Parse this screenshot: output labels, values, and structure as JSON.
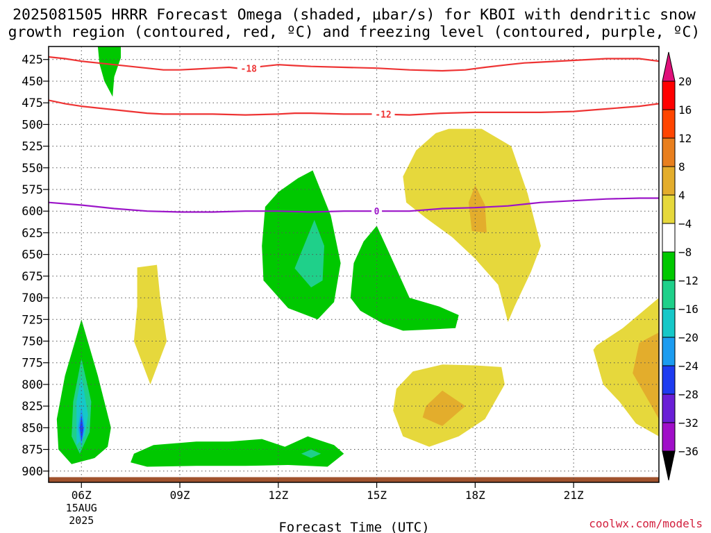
{
  "chart_data": {
    "type": "heatmap",
    "title_line1": "2025081505 HRRR Forecast Omega (shaded, μbar/s) for KBOI with dendritic snow",
    "title_line2": "growth region (contoured, red, ºC) and freezing level (contoured, purple, ºC)",
    "xlabel": "Forecast Time (UTC)",
    "ylabel": "",
    "credit": "coolwx.com/models",
    "x_range_hours": [
      5,
      23.6
    ],
    "y_range_hPa": [
      410,
      913
    ],
    "x_ticks": [
      {
        "hour": 6,
        "label": "06Z",
        "sub1": "15AUG",
        "sub2": "2025"
      },
      {
        "hour": 9,
        "label": "09Z",
        "sub1": "",
        "sub2": ""
      },
      {
        "hour": 12,
        "label": "12Z",
        "sub1": "",
        "sub2": ""
      },
      {
        "hour": 15,
        "label": "15Z",
        "sub1": "",
        "sub2": ""
      },
      {
        "hour": 18,
        "label": "18Z",
        "sub1": "",
        "sub2": ""
      },
      {
        "hour": 21,
        "label": "21Z",
        "sub1": "",
        "sub2": ""
      }
    ],
    "y_ticks": [
      425,
      450,
      475,
      500,
      525,
      550,
      575,
      600,
      625,
      650,
      675,
      700,
      725,
      750,
      775,
      800,
      825,
      850,
      875,
      900
    ],
    "grid": true,
    "colorbar": [
      {
        "label": "20",
        "color": "#ff0000"
      },
      {
        "label": "16",
        "color": "#ff4500"
      },
      {
        "label": "12",
        "color": "#e87f1e"
      },
      {
        "label": "8",
        "color": "#e3ad2c"
      },
      {
        "label": "4",
        "color": "#e6d83c"
      },
      {
        "label": "−4",
        "color": "#ffffff"
      },
      {
        "label": "−8",
        "color": "#00c800"
      },
      {
        "label": "−12",
        "color": "#1fd08a"
      },
      {
        "label": "−16",
        "color": "#16c8c8"
      },
      {
        "label": "−20",
        "color": "#1c9cf0"
      },
      {
        "label": "−24",
        "color": "#1e3cf0"
      },
      {
        "label": "−28",
        "color": "#6a1fd6"
      },
      {
        "label": "−32",
        "color": "#a00fc8"
      },
      {
        "label": "−36",
        "color": "#a0a0a0"
      }
    ],
    "colorbar_top_color": "#e0107a",
    "colorbar_bottom_color": "#000000",
    "contours": [
      {
        "label": "-18",
        "color": "#ee3333",
        "label_hour": 11.1,
        "points": [
          [
            5,
            422
          ],
          [
            5.5,
            424
          ],
          [
            6,
            427
          ],
          [
            6.5,
            429
          ],
          [
            7,
            431
          ],
          [
            7.5,
            433
          ],
          [
            8,
            435
          ],
          [
            8.5,
            437
          ],
          [
            9,
            437
          ],
          [
            9.5,
            436
          ],
          [
            10,
            435
          ],
          [
            10.5,
            434
          ],
          [
            11,
            436
          ],
          [
            11.5,
            433
          ],
          [
            12,
            431
          ],
          [
            12.5,
            432
          ],
          [
            13,
            433
          ],
          [
            14,
            434
          ],
          [
            15,
            435
          ],
          [
            16,
            437
          ],
          [
            17,
            438
          ],
          [
            17.7,
            437
          ],
          [
            18.3,
            434
          ],
          [
            19,
            431
          ],
          [
            19.5,
            429
          ],
          [
            20,
            428
          ],
          [
            21,
            426
          ],
          [
            22,
            424
          ],
          [
            23,
            424
          ],
          [
            23.6,
            427
          ]
        ]
      },
      {
        "label": "-12",
        "color": "#ee3333",
        "label_hour": 15.2,
        "points": [
          [
            5,
            472
          ],
          [
            5.5,
            476
          ],
          [
            6,
            479
          ],
          [
            6.5,
            481
          ],
          [
            7,
            483
          ],
          [
            7.5,
            485
          ],
          [
            8,
            487
          ],
          [
            8.5,
            488
          ],
          [
            9,
            488
          ],
          [
            9.5,
            488
          ],
          [
            10,
            488
          ],
          [
            11,
            489
          ],
          [
            12,
            488
          ],
          [
            12.5,
            487
          ],
          [
            13,
            487
          ],
          [
            14,
            488
          ],
          [
            15,
            488
          ],
          [
            16,
            489
          ],
          [
            17,
            487
          ],
          [
            18,
            486
          ],
          [
            19,
            486
          ],
          [
            20,
            486
          ],
          [
            21,
            485
          ],
          [
            22,
            482
          ],
          [
            23,
            479
          ],
          [
            23.6,
            476
          ]
        ]
      },
      {
        "label": "0",
        "color": "#9b14c8",
        "label_hour": 15.0,
        "points": [
          [
            5,
            590
          ],
          [
            6,
            593
          ],
          [
            7,
            597
          ],
          [
            8,
            600
          ],
          [
            9,
            601
          ],
          [
            10,
            601
          ],
          [
            11,
            600
          ],
          [
            12,
            600
          ],
          [
            13,
            601
          ],
          [
            14,
            600
          ],
          [
            15,
            600
          ],
          [
            16,
            600
          ],
          [
            17,
            597
          ],
          [
            18,
            596
          ],
          [
            19,
            594
          ],
          [
            20,
            590
          ],
          [
            21,
            588
          ],
          [
            22,
            586
          ],
          [
            23,
            585
          ],
          [
            23.6,
            585
          ]
        ]
      }
    ],
    "shaded_regions": [
      {
        "value_bin": "-4 to -8",
        "color": "#00c800",
        "points": [
          [
            6.5,
            410
          ],
          [
            7.2,
            410
          ],
          [
            7.2,
            423
          ],
          [
            7.0,
            445
          ],
          [
            6.95,
            468
          ],
          [
            6.7,
            450
          ],
          [
            6.55,
            430
          ]
        ]
      },
      {
        "value_bin": "-4 to -8",
        "color": "#00c800",
        "points": [
          [
            11.6,
            595
          ],
          [
            12,
            578
          ],
          [
            12.6,
            562
          ],
          [
            13.05,
            553
          ],
          [
            13.6,
            605
          ],
          [
            13.9,
            660
          ],
          [
            13.7,
            705
          ],
          [
            13.2,
            725
          ],
          [
            12.3,
            712
          ],
          [
            11.55,
            680
          ],
          [
            11.5,
            640
          ]
        ]
      },
      {
        "value_bin": "-8 to -12",
        "color": "#1fd08a",
        "points": [
          [
            12.8,
            638
          ],
          [
            13.1,
            610
          ],
          [
            13.4,
            640
          ],
          [
            13.35,
            680
          ],
          [
            13.0,
            688
          ],
          [
            12.5,
            666
          ]
        ]
      },
      {
        "value_bin": "-4 to -8",
        "color": "#00c800",
        "points": [
          [
            15,
            617
          ],
          [
            15.4,
            650
          ],
          [
            16,
            700
          ],
          [
            16.9,
            710
          ],
          [
            17.5,
            720
          ],
          [
            17.4,
            735
          ],
          [
            16.4,
            737
          ],
          [
            15.8,
            738
          ],
          [
            15.2,
            730
          ],
          [
            14.5,
            715
          ],
          [
            14.2,
            700
          ],
          [
            14.3,
            660
          ],
          [
            14.6,
            635
          ]
        ]
      },
      {
        "value_bin": "4 to 8",
        "color": "#e6d83c",
        "points": [
          [
            16.2,
            530
          ],
          [
            16.8,
            510
          ],
          [
            17.2,
            505
          ],
          [
            18.2,
            505
          ],
          [
            19.1,
            525
          ],
          [
            19.6,
            580
          ],
          [
            20.0,
            640
          ],
          [
            19.7,
            670
          ],
          [
            19.2,
            710
          ],
          [
            19.0,
            728
          ],
          [
            18.7,
            685
          ],
          [
            18.0,
            655
          ],
          [
            17.3,
            630
          ],
          [
            16.5,
            608
          ],
          [
            15.9,
            590
          ],
          [
            15.8,
            560
          ]
        ]
      },
      {
        "value_bin": "8 to 12",
        "color": "#e3ad2c",
        "points": [
          [
            17.8,
            590
          ],
          [
            18.0,
            570
          ],
          [
            18.3,
            593
          ],
          [
            18.35,
            625
          ],
          [
            17.9,
            623
          ]
        ]
      },
      {
        "value_bin": "4 to 8",
        "color": "#e6d83c",
        "points": [
          [
            7.7,
            665
          ],
          [
            8.3,
            662
          ],
          [
            8.4,
            700
          ],
          [
            8.6,
            750
          ],
          [
            8.1,
            800
          ],
          [
            7.6,
            750
          ],
          [
            7.7,
            710
          ]
        ]
      },
      {
        "value_bin": "4 to 8",
        "color": "#e6d83c",
        "points": [
          [
            15.6,
            805
          ],
          [
            16.1,
            785
          ],
          [
            17.0,
            777
          ],
          [
            18.0,
            778
          ],
          [
            18.8,
            780
          ],
          [
            18.9,
            800
          ],
          [
            18.3,
            840
          ],
          [
            17.5,
            860
          ],
          [
            16.6,
            872
          ],
          [
            15.8,
            860
          ],
          [
            15.5,
            830
          ]
        ]
      },
      {
        "value_bin": "8 to 12",
        "color": "#e3ad2c",
        "points": [
          [
            16.5,
            825
          ],
          [
            17.0,
            807
          ],
          [
            17.7,
            825
          ],
          [
            17.0,
            848
          ],
          [
            16.4,
            838
          ]
        ]
      },
      {
        "value_bin": "4 to 8",
        "color": "#e6d83c",
        "points": [
          [
            22.5,
            735
          ],
          [
            23.6,
            700
          ],
          [
            23.6,
            860
          ],
          [
            22.9,
            845
          ],
          [
            22.4,
            820
          ],
          [
            21.9,
            800
          ],
          [
            21.6,
            760
          ],
          [
            21.7,
            755
          ]
        ]
      },
      {
        "value_bin": "8 to 12",
        "color": "#e3ad2c",
        "points": [
          [
            23.0,
            752
          ],
          [
            23.6,
            740
          ],
          [
            23.6,
            840
          ],
          [
            23.3,
            820
          ],
          [
            22.8,
            787
          ]
        ]
      },
      {
        "value_bin": "-4 to -8",
        "color": "#00c800",
        "points": [
          [
            6.0,
            725
          ],
          [
            6.5,
            790
          ],
          [
            6.9,
            850
          ],
          [
            6.8,
            872
          ],
          [
            6.4,
            885
          ],
          [
            5.7,
            892
          ],
          [
            5.3,
            875
          ],
          [
            5.25,
            840
          ],
          [
            5.5,
            790
          ]
        ]
      },
      {
        "value_bin": "-8 to -12",
        "color": "#1fd08a",
        "points": [
          [
            6.0,
            770
          ],
          [
            6.3,
            820
          ],
          [
            6.25,
            855
          ],
          [
            5.95,
            880
          ],
          [
            5.7,
            860
          ],
          [
            5.75,
            820
          ]
        ]
      },
      {
        "value_bin": "-12 to -16",
        "color": "#16c8c8",
        "points": [
          [
            6.0,
            790
          ],
          [
            6.2,
            835
          ],
          [
            6.1,
            860
          ],
          [
            5.85,
            870
          ],
          [
            5.85,
            820
          ]
        ]
      },
      {
        "value_bin": "-16 to -20",
        "color": "#1c9cf0",
        "points": [
          [
            6.0,
            825
          ],
          [
            6.1,
            850
          ],
          [
            6.0,
            872
          ],
          [
            5.9,
            850
          ]
        ]
      },
      {
        "value_bin": "-20 to -24",
        "color": "#1e3cf0",
        "points": [
          [
            6.0,
            835
          ],
          [
            6.06,
            852
          ],
          [
            6.0,
            866
          ],
          [
            5.95,
            850
          ]
        ]
      },
      {
        "value_bin": "-4 to -8",
        "color": "#00c800",
        "points": [
          [
            7.6,
            880
          ],
          [
            8.2,
            870
          ],
          [
            9.5,
            866
          ],
          [
            10.5,
            866
          ],
          [
            11.5,
            863
          ],
          [
            12.2,
            872
          ],
          [
            12.9,
            860
          ],
          [
            13.7,
            870
          ],
          [
            14.0,
            880
          ],
          [
            13.5,
            895
          ],
          [
            12.3,
            893
          ],
          [
            11,
            894
          ],
          [
            9.5,
            894
          ],
          [
            8,
            895
          ],
          [
            7.5,
            890
          ]
        ]
      },
      {
        "value_bin": "-8 to -12",
        "color": "#1fd08a",
        "points": [
          [
            12.7,
            880
          ],
          [
            13.0,
            875
          ],
          [
            13.3,
            880
          ],
          [
            13.0,
            885
          ]
        ]
      }
    ],
    "terrain_color": "#a0522d",
    "terrain_top_hPa": 907
  }
}
